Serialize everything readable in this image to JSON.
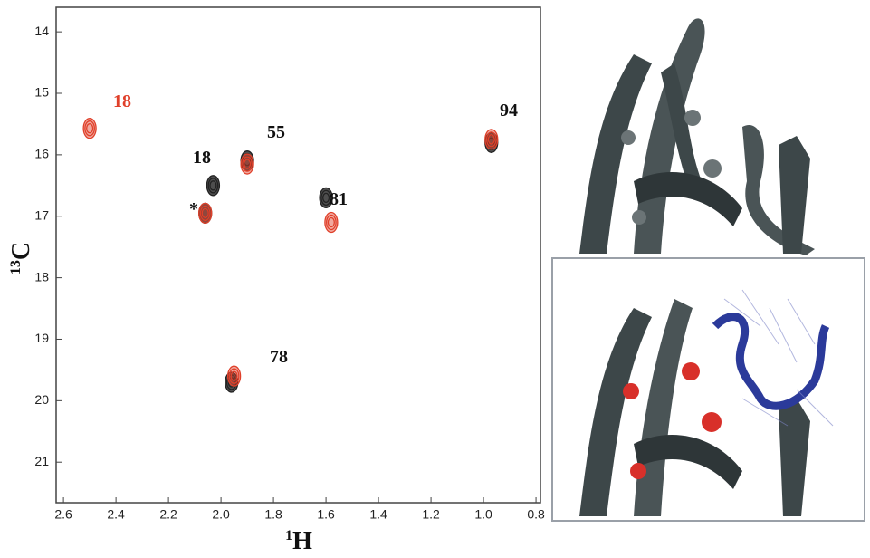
{
  "chart_data": {
    "type": "scatter",
    "x_label": {
      "sup": "1",
      "main": "H"
    },
    "y_label": {
      "sup": "13",
      "main": "C"
    },
    "xlim": [
      2.628,
      0.783
    ],
    "ylim": [
      13.6,
      21.66
    ],
    "xticks": [
      2.6,
      2.4,
      2.2,
      {
        "value": 2.0,
        "label": "2.0"
      },
      1.8,
      1.6,
      1.4,
      1.2,
      {
        "value": 1.0,
        "label": "1.0"
      },
      0.8
    ],
    "yticks": [
      14,
      15,
      16,
      17,
      18,
      19,
      20,
      21
    ],
    "series": [
      {
        "color": "#222222",
        "x": [
          2.03,
          1.9,
          1.6,
          0.97,
          1.96,
          2.06
        ],
        "values": [
          16.5,
          16.1,
          16.7,
          15.8,
          19.7,
          16.95
        ]
      },
      {
        "color": "#e0402a",
        "x": [
          2.5,
          1.9,
          1.58,
          0.97,
          1.95,
          2.06
        ],
        "values": [
          15.57,
          16.15,
          17.1,
          15.75,
          19.6,
          16.95
        ]
      }
    ],
    "annotations": [
      {
        "text": "18",
        "color": "#e0402a"
      },
      {
        "text": "55",
        "color": "#111111"
      },
      {
        "text": "18",
        "color": "#111111"
      },
      {
        "text": "81",
        "color": "#111111"
      },
      {
        "text": "*",
        "color": "#111111"
      },
      {
        "text": "94",
        "color": "#111111"
      },
      {
        "text": "78",
        "color": "#111111"
      }
    ]
  }
}
